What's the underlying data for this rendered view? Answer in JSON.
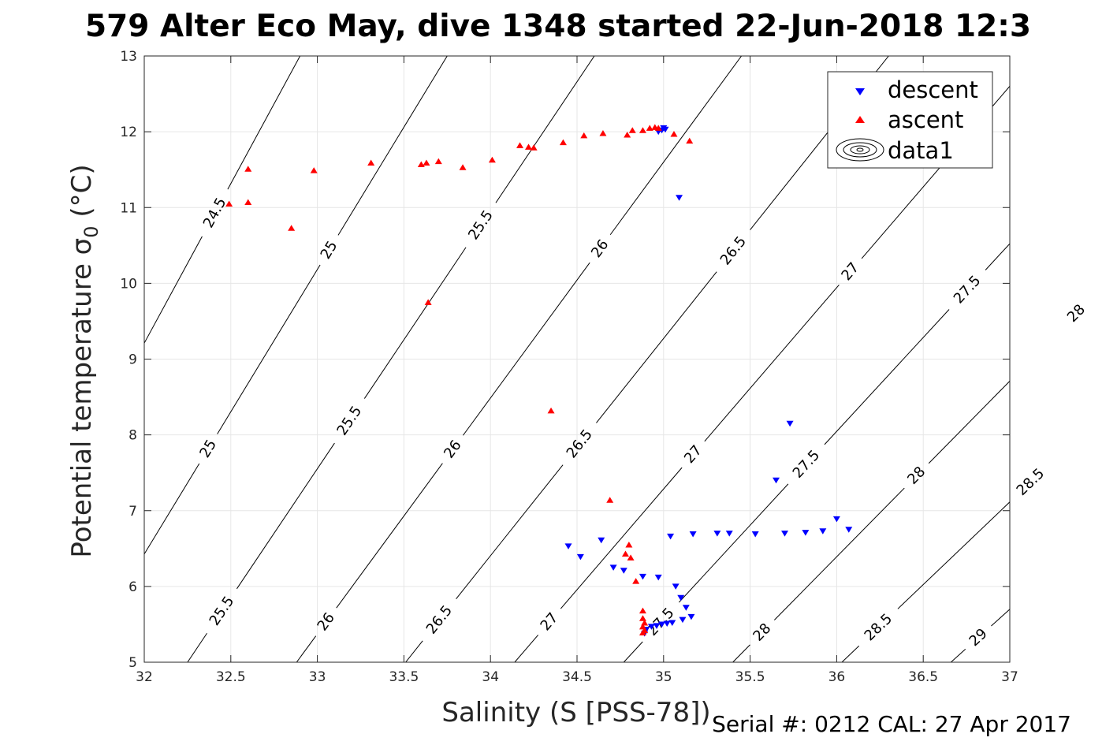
{
  "chart_data": {
    "type": "scatter",
    "title": "579 Alter Eco May, dive 1348 started 22-Jun-2018 12:3",
    "xlabel": "Salinity (S [PSS-78])",
    "ylabel": "Potential temperature σ",
    "ylabel_sub": "0",
    "ylabel_unit": " (°C)",
    "xlim": [
      32,
      37
    ],
    "ylim": [
      5,
      13
    ],
    "xticks": [
      "32",
      "32.5",
      "33",
      "33.5",
      "34",
      "34.5",
      "35",
      "35.5",
      "36",
      "36.5",
      "37"
    ],
    "yticks": [
      "5",
      "6",
      "7",
      "8",
      "9",
      "10",
      "11",
      "12",
      "13"
    ],
    "grid": true,
    "legend_position": "top-right",
    "legend": [
      "descent",
      "ascent",
      "data1"
    ],
    "colors": {
      "descent": "#0000ff",
      "ascent": "#ff0000",
      "contour": "#000000",
      "grid": "#e6e6e6"
    },
    "series": [
      {
        "name": "descent",
        "marker": "triangle-down",
        "points": [
          [
            34.97,
            12.0
          ],
          [
            34.99,
            12.02
          ],
          [
            35.0,
            12.05
          ],
          [
            35.01,
            12.03
          ],
          [
            35.09,
            11.13
          ],
          [
            35.73,
            8.15
          ],
          [
            35.65,
            7.4
          ],
          [
            36.0,
            6.89
          ],
          [
            36.07,
            6.75
          ],
          [
            35.92,
            6.73
          ],
          [
            35.82,
            6.71
          ],
          [
            35.7,
            6.7
          ],
          [
            35.53,
            6.69
          ],
          [
            35.38,
            6.7
          ],
          [
            35.31,
            6.7
          ],
          [
            35.17,
            6.69
          ],
          [
            35.04,
            6.66
          ],
          [
            34.45,
            6.53
          ],
          [
            34.52,
            6.39
          ],
          [
            34.64,
            6.61
          ],
          [
            34.71,
            6.25
          ],
          [
            34.77,
            6.21
          ],
          [
            34.88,
            6.13
          ],
          [
            34.97,
            6.12
          ],
          [
            35.07,
            6.0
          ],
          [
            35.1,
            5.85
          ],
          [
            35.13,
            5.72
          ],
          [
            35.16,
            5.6
          ],
          [
            35.11,
            5.56
          ],
          [
            35.05,
            5.52
          ],
          [
            35.02,
            5.51
          ],
          [
            34.99,
            5.5
          ],
          [
            34.96,
            5.48
          ],
          [
            34.93,
            5.47
          ],
          [
            34.9,
            5.43
          ],
          [
            34.89,
            5.38
          ]
        ]
      },
      {
        "name": "ascent",
        "marker": "triangle-up",
        "points": [
          [
            32.49,
            11.05
          ],
          [
            32.6,
            11.07
          ],
          [
            32.6,
            11.51
          ],
          [
            32.85,
            10.73
          ],
          [
            32.98,
            11.49
          ],
          [
            33.31,
            11.59
          ],
          [
            33.6,
            11.57
          ],
          [
            33.63,
            11.59
          ],
          [
            33.7,
            11.61
          ],
          [
            33.84,
            11.53
          ],
          [
            34.01,
            11.63
          ],
          [
            34.17,
            11.82
          ],
          [
            34.22,
            11.8
          ],
          [
            34.25,
            11.79
          ],
          [
            34.42,
            11.86
          ],
          [
            34.54,
            11.95
          ],
          [
            34.65,
            11.98
          ],
          [
            34.79,
            11.96
          ],
          [
            34.82,
            12.02
          ],
          [
            34.88,
            12.02
          ],
          [
            34.92,
            12.05
          ],
          [
            34.95,
            12.06
          ],
          [
            34.97,
            12.05
          ],
          [
            35.06,
            11.97
          ],
          [
            35.15,
            11.88
          ],
          [
            33.64,
            9.75
          ],
          [
            34.35,
            8.32
          ],
          [
            34.69,
            7.14
          ],
          [
            34.8,
            6.55
          ],
          [
            34.78,
            6.43
          ],
          [
            34.81,
            6.38
          ],
          [
            34.84,
            6.07
          ],
          [
            34.88,
            5.68
          ],
          [
            34.88,
            5.58
          ],
          [
            34.89,
            5.52
          ],
          [
            34.88,
            5.47
          ],
          [
            34.89,
            5.42
          ],
          [
            34.88,
            5.39
          ]
        ]
      }
    ],
    "contours": {
      "label": "σ0 isopycnals",
      "levels": [
        {
          "level": "24.5",
          "x_at_5": 31.0,
          "x_at_13": 32.9,
          "labels": [
            [
              32.15,
              11.25
            ]
          ]
        },
        {
          "level": "25",
          "x_at_5": 31.62,
          "x_at_13": 33.75,
          "labels": [
            [
              32.13,
              8.15
            ],
            [
              32.7,
              10.95
            ]
          ]
        },
        {
          "level": "25.5",
          "x_at_5": 32.25,
          "x_at_13": 34.6,
          "labels": [
            [
              32.4,
              5.75
            ],
            [
              32.85,
              8.7
            ],
            [
              33.5,
              11.45
            ]
          ]
        },
        {
          "level": "26",
          "x_at_5": 32.88,
          "x_at_13": 35.45,
          "labels": [
            [
              32.98,
              5.65
            ],
            [
              33.4,
              8.45
            ],
            [
              34.1,
              11.35
            ]
          ]
        },
        {
          "level": "26.5",
          "x_at_5": 33.51,
          "x_at_13": 36.3,
          "labels": [
            [
              33.6,
              5.75
            ],
            [
              34.12,
              8.6
            ],
            [
              34.87,
              11.4
            ]
          ]
        },
        {
          "level": "27",
          "x_at_5": 34.14,
          "x_at_13": 37.15,
          "labels": [
            [
              34.23,
              5.75
            ],
            [
              34.76,
              8.55
            ],
            [
              35.47,
              11.35
            ]
          ]
        },
        {
          "level": "27.5",
          "x_at_5": 34.77,
          "x_at_13": 38.0,
          "labels": [
            [
              34.88,
              5.75
            ],
            [
              35.38,
              8.55
            ],
            [
              36.05,
              11.4
            ]
          ]
        },
        {
          "level": "28",
          "x_at_5": 35.4,
          "x_at_13": 38.85,
          "labels": [
            [
              35.5,
              5.55
            ],
            [
              36.0,
              8.5
            ],
            [
              36.63,
              11.3
            ]
          ]
        },
        {
          "level": "28.5",
          "x_at_5": 36.03,
          "x_at_13": 39.7,
          "labels": [
            [
              36.12,
              5.75
            ],
            [
              36.63,
              8.55
            ]
          ]
        },
        {
          "level": "29",
          "x_at_5": 36.66,
          "x_at_13": 40.55,
          "labels": [
            [
              36.73,
              5.55
            ]
          ]
        }
      ]
    }
  },
  "footer": {
    "serial_text": "Serial #: 0212  CAL: 27 Apr 2017"
  }
}
